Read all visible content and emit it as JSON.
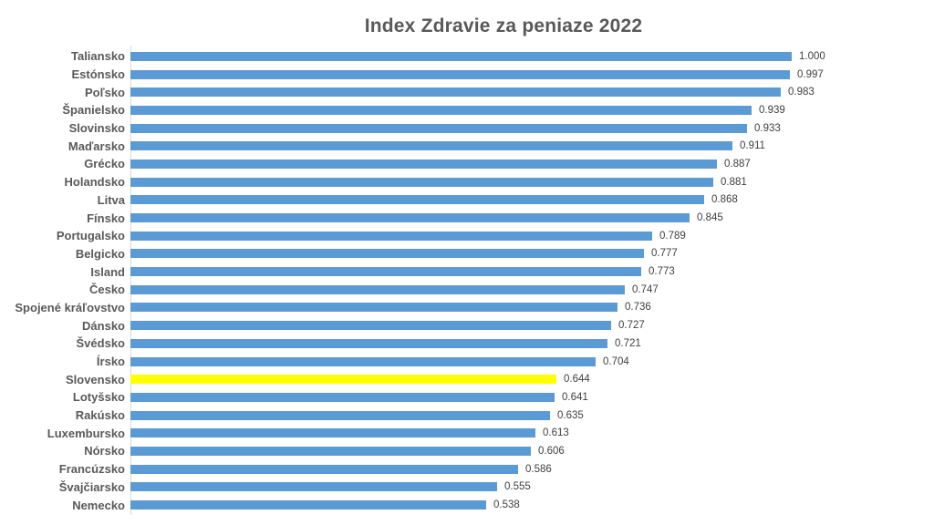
{
  "chart_data": {
    "type": "bar",
    "orientation": "horizontal",
    "title": "Index Zdravie za peniaze 2022",
    "categories": [
      "Taliansko",
      "Estónsko",
      "Poľsko",
      "Španielsko",
      "Slovinsko",
      "Maďarsko",
      "Grécko",
      "Holandsko",
      "Litva",
      "Fínsko",
      "Portugalsko",
      "Belgicko",
      "Island",
      "Česko",
      "Spojené kráľovstvo",
      "Dánsko",
      "Švédsko",
      "Írsko",
      "Slovensko",
      "Lotyšsko",
      "Rakúsko",
      "Luxembursko",
      "Nórsko",
      "Francúzsko",
      "Švajčiarsko",
      "Nemecko"
    ],
    "values": [
      1.0,
      0.997,
      0.983,
      0.939,
      0.933,
      0.911,
      0.887,
      0.881,
      0.868,
      0.845,
      0.789,
      0.777,
      0.773,
      0.747,
      0.736,
      0.727,
      0.721,
      0.704,
      0.644,
      0.641,
      0.635,
      0.613,
      0.606,
      0.586,
      0.555,
      0.538
    ],
    "value_labels": [
      "1.000",
      "0.997",
      "0.983",
      "0.939",
      "0.933",
      "0.911",
      "0.887",
      "0.881",
      "0.868",
      "0.845",
      "0.789",
      "0.777",
      "0.773",
      "0.747",
      "0.736",
      "0.727",
      "0.721",
      "0.704",
      "0.644",
      "0.641",
      "0.635",
      "0.613",
      "0.606",
      "0.586",
      "0.555",
      "0.538"
    ],
    "xlim": [
      0,
      1.0
    ],
    "grid": false,
    "legend": "none",
    "bar_color": "#5B9BD5",
    "highlight_category": "Slovensko",
    "highlight_color": "#FFFF00",
    "axis_line_color": "#D9D9D9",
    "title_color": "#595959",
    "category_label_color": "#595959",
    "value_label_color": "#404040",
    "background_color": "#FFFFFF"
  }
}
